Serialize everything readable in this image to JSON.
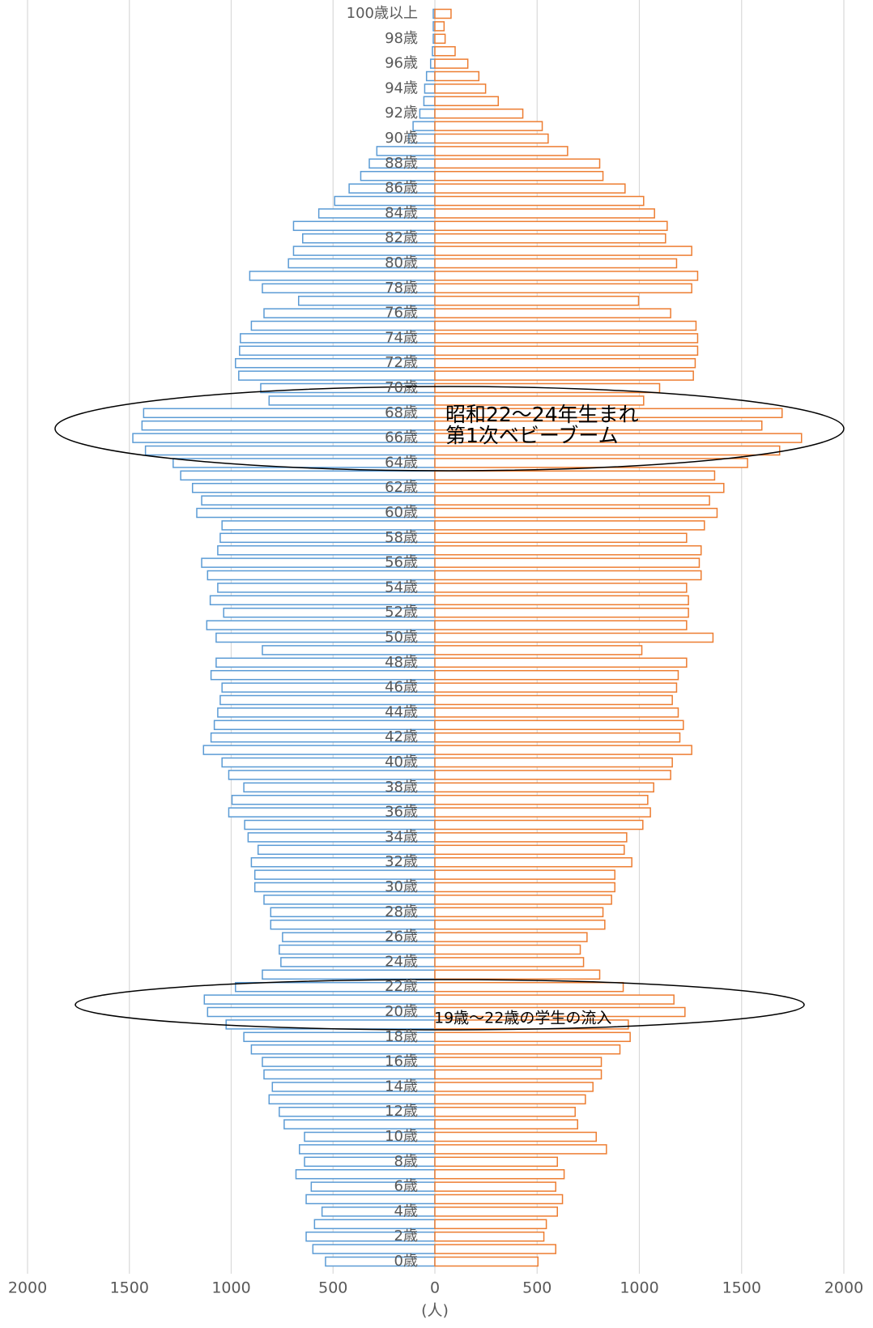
{
  "chart_data": [
    {
      "type": "bar",
      "orientation": "horizontal",
      "categories": [
        "0歳",
        null,
        "2歳",
        null,
        "4歳",
        null,
        "6歳",
        null,
        "8歳",
        null,
        "10歳",
        null,
        "12歳",
        null,
        "14歳",
        null,
        "16歳",
        null,
        "18歳",
        null,
        "20歳",
        null,
        "22歳",
        null,
        "24歳",
        null,
        "26歳",
        null,
        "28歳",
        null,
        "30歳",
        null,
        "32歳",
        null,
        "34歳",
        null,
        "36歳",
        null,
        "38歳",
        null,
        "40歳",
        null,
        "42歳",
        null,
        "44歳",
        null,
        "46歳",
        null,
        "48歳",
        null,
        "50歳",
        null,
        "52歳",
        null,
        "54歳",
        null,
        "56歳",
        null,
        "58歳",
        null,
        "60歳",
        null,
        "62歳",
        null,
        "64歳",
        null,
        "66歳",
        null,
        "68歳",
        null,
        "70歳",
        null,
        "72歳",
        null,
        "74歳",
        null,
        "76歳",
        null,
        "78歳",
        null,
        "80歳",
        null,
        "82歳",
        null,
        "84歳",
        null,
        "86歳",
        null,
        "88歳",
        null,
        "90歳",
        null,
        "92歳",
        null,
        "94歳",
        null,
        "96歳",
        null,
        "98歳",
        null,
        "100歳以上"
      ],
      "series": [
        {
          "color": "#5b9bd5",
          "values": [
            537,
            599,
            632,
            591,
            554,
            632,
            607,
            682,
            640,
            665,
            640,
            740,
            764,
            814,
            798,
            839,
            847,
            901,
            938,
            1025,
            1116,
            1132,
            979,
            847,
            756,
            764,
            748,
            806,
            806,
            839,
            884,
            884,
            901,
            868,
            917,
            934,
            1012,
            996,
            938,
            1012,
            1045,
            1136,
            1099,
            1083,
            1066,
            1054,
            1045,
            1099,
            1074,
            847,
            1074,
            1120,
            1037,
            1103,
            1066,
            1116,
            1145,
            1066,
            1054,
            1045,
            1169,
            1145,
            1190,
            1248,
            1285,
            1421,
            1483,
            1438,
            1430,
            814,
            855,
            963,
            979,
            959,
            955,
            901,
            839,
            669,
            847,
            909,
            719,
            694,
            649,
            694,
            570,
            492,
            421,
            364,
            322,
            285,
            128,
            107,
            74,
            54,
            50,
            41,
            21,
            12,
            8,
            8,
            8
          ]
        }
      ],
      "xlim": [
        2000,
        0
      ],
      "xticks": [
        2000,
        1500,
        1000,
        500
      ],
      "grid": true,
      "xlabel": "(人)"
    },
    {
      "type": "bar",
      "orientation": "horizontal",
      "series": [
        {
          "color": "#ed7d31",
          "values": [
            504,
            591,
            533,
            545,
            599,
            624,
            591,
            632,
            599,
            839,
            789,
            698,
            686,
            736,
            773,
            814,
            814,
            905,
            955,
            946,
            1223,
            1169,
            921,
            806,
            727,
            711,
            744,
            831,
            822,
            864,
            880,
            880,
            963,
            926,
            938,
            1017,
            1054,
            1041,
            1070,
            1153,
            1161,
            1256,
            1198,
            1215,
            1190,
            1161,
            1182,
            1190,
            1231,
            1012,
            1360,
            1231,
            1240,
            1240,
            1231,
            1302,
            1293,
            1302,
            1231,
            1318,
            1380,
            1343,
            1413,
            1368,
            1529,
            1686,
            1793,
            1599,
            1698,
            1021,
            1099,
            1264,
            1273,
            1285,
            1285,
            1277,
            1153,
            996,
            1256,
            1285,
            1182,
            1256,
            1128,
            1136,
            1074,
            1021,
            930,
            822,
            806,
            649,
            554,
            525,
            430,
            310,
            248,
            215,
            161,
            99,
            50,
            45,
            79
          ]
        }
      ],
      "xlim": [
        0,
        2000
      ],
      "xticks": [
        0,
        500,
        1000,
        1500,
        2000
      ],
      "grid": true,
      "annotations": [
        "昭和22～24年生まれ",
        "第1次ベビーブーム",
        "19歳～22歳の学生の流入"
      ]
    }
  ]
}
